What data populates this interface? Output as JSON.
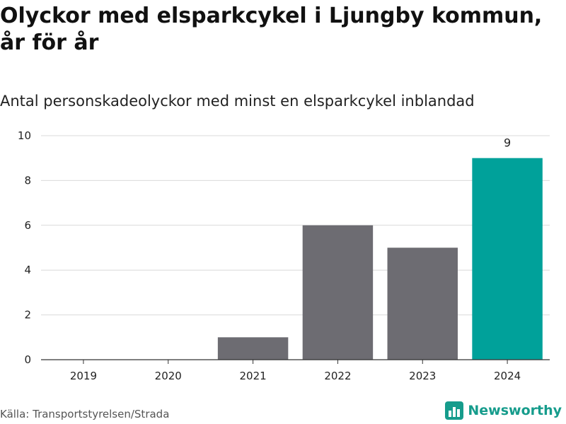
{
  "title_line1": "Olyckor med elsparkcykel i Ljungby kommun,",
  "title_line2": "år för år",
  "subtitle": "Antal personskadeolyckor med minst en elsparkcykel inblandad",
  "source": "Källa: Transportstyrelsen/Strada",
  "brand": "Newsworthy",
  "colors": {
    "bar_default": "#6d6c72",
    "bar_highlight": "#00a19a",
    "grid": "#d9d9d9",
    "axis": "#333333",
    "brand": "#169c8c"
  },
  "chart_data": {
    "type": "bar",
    "categories": [
      "2019",
      "2020",
      "2021",
      "2022",
      "2023",
      "2024"
    ],
    "values": [
      0,
      0,
      1,
      6,
      5,
      9
    ],
    "highlight_index": 5,
    "data_labels": [
      null,
      null,
      null,
      null,
      null,
      "9"
    ],
    "yticks": [
      0,
      2,
      4,
      6,
      8,
      10
    ],
    "ylim": [
      0,
      10
    ],
    "grid": true,
    "legend": "none"
  }
}
